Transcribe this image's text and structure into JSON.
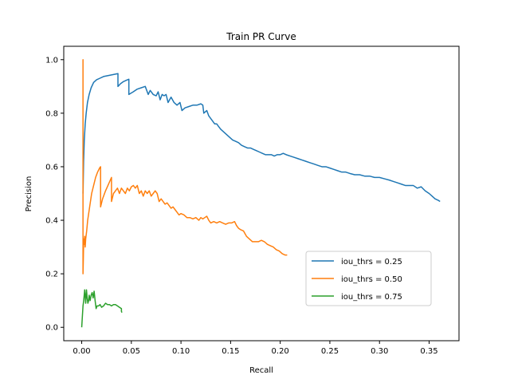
{
  "chart_data": {
    "type": "line",
    "title": "Train PR Curve",
    "xlabel": "Recall",
    "ylabel": "Precision",
    "xlim": [
      -0.0181,
      0.3801
    ],
    "ylim": [
      -0.05,
      1.05
    ],
    "xticks": [
      0.0,
      0.05,
      0.1,
      0.15,
      0.2,
      0.25,
      0.3,
      0.35
    ],
    "xtick_labels": [
      "0.00",
      "0.05",
      "0.10",
      "0.15",
      "0.20",
      "0.25",
      "0.30",
      "0.35"
    ],
    "yticks": [
      0.0,
      0.2,
      0.4,
      0.6,
      0.8,
      1.0
    ],
    "ytick_labels": [
      "0.0",
      "0.2",
      "0.4",
      "0.6",
      "0.8",
      "1.0"
    ],
    "grid": false,
    "legend_position": "lower-right",
    "series": [
      {
        "name": "iou_thrs = 0.25",
        "color": "#1f77b4",
        "x": [
          0.0013,
          0.0019,
          0.0026,
          0.0035,
          0.0045,
          0.0058,
          0.0075,
          0.0095,
          0.012,
          0.015,
          0.018,
          0.022,
          0.026,
          0.03,
          0.034,
          0.0365,
          0.0365,
          0.039,
          0.042,
          0.045,
          0.0475,
          0.0475,
          0.052,
          0.056,
          0.06,
          0.064,
          0.067,
          0.069,
          0.072,
          0.075,
          0.077,
          0.079,
          0.081,
          0.083,
          0.085,
          0.087,
          0.09,
          0.093,
          0.096,
          0.099,
          0.101,
          0.104,
          0.108,
          0.112,
          0.116,
          0.12,
          0.122,
          0.123,
          0.126,
          0.128,
          0.13,
          0.132,
          0.134,
          0.136,
          0.138,
          0.14,
          0.143,
          0.146,
          0.149,
          0.152,
          0.155,
          0.158,
          0.161,
          0.164,
          0.167,
          0.17,
          0.173,
          0.176,
          0.179,
          0.182,
          0.185,
          0.188,
          0.191,
          0.194,
          0.197,
          0.2,
          0.203,
          0.206,
          0.21,
          0.214,
          0.218,
          0.222,
          0.226,
          0.23,
          0.234,
          0.238,
          0.242,
          0.246,
          0.25,
          0.254,
          0.258,
          0.262,
          0.266,
          0.27,
          0.275,
          0.28,
          0.285,
          0.29,
          0.295,
          0.3,
          0.305,
          0.31,
          0.314,
          0.318,
          0.322,
          0.326,
          0.33,
          0.334,
          0.338,
          0.342,
          0.346,
          0.35,
          0.353,
          0.356,
          0.359,
          0.361
        ],
        "y": [
          0.5,
          0.62,
          0.7,
          0.76,
          0.8,
          0.84,
          0.87,
          0.895,
          0.915,
          0.925,
          0.93,
          0.937,
          0.94,
          0.943,
          0.946,
          0.948,
          0.9,
          0.91,
          0.918,
          0.923,
          0.927,
          0.87,
          0.88,
          0.89,
          0.895,
          0.9,
          0.87,
          0.885,
          0.87,
          0.865,
          0.88,
          0.85,
          0.87,
          0.865,
          0.87,
          0.84,
          0.86,
          0.84,
          0.83,
          0.84,
          0.81,
          0.82,
          0.825,
          0.83,
          0.83,
          0.835,
          0.83,
          0.8,
          0.81,
          0.79,
          0.78,
          0.77,
          0.76,
          0.76,
          0.75,
          0.74,
          0.73,
          0.72,
          0.71,
          0.7,
          0.695,
          0.69,
          0.68,
          0.675,
          0.67,
          0.67,
          0.665,
          0.66,
          0.655,
          0.65,
          0.645,
          0.645,
          0.645,
          0.64,
          0.645,
          0.645,
          0.65,
          0.645,
          0.64,
          0.635,
          0.63,
          0.625,
          0.62,
          0.615,
          0.61,
          0.605,
          0.6,
          0.6,
          0.595,
          0.59,
          0.585,
          0.58,
          0.58,
          0.575,
          0.57,
          0.57,
          0.565,
          0.565,
          0.56,
          0.56,
          0.555,
          0.55,
          0.545,
          0.54,
          0.535,
          0.53,
          0.53,
          0.53,
          0.52,
          0.525,
          0.51,
          0.5,
          0.49,
          0.48,
          0.475,
          0.47
        ]
      },
      {
        "name": "iou_thrs = 0.50",
        "color": "#ff7f0e",
        "x": [
          0.0013,
          0.0013,
          0.0013,
          0.0016,
          0.002,
          0.0025,
          0.003,
          0.0035,
          0.004,
          0.005,
          0.006,
          0.008,
          0.01,
          0.012,
          0.014,
          0.016,
          0.018,
          0.019,
          0.019,
          0.021,
          0.024,
          0.027,
          0.03,
          0.03,
          0.032,
          0.034,
          0.036,
          0.038,
          0.04,
          0.042,
          0.044,
          0.046,
          0.048,
          0.05,
          0.052,
          0.054,
          0.056,
          0.058,
          0.06,
          0.062,
          0.064,
          0.066,
          0.068,
          0.07,
          0.072,
          0.074,
          0.076,
          0.078,
          0.08,
          0.082,
          0.084,
          0.086,
          0.088,
          0.09,
          0.092,
          0.094,
          0.096,
          0.098,
          0.1,
          0.103,
          0.106,
          0.109,
          0.112,
          0.115,
          0.118,
          0.12,
          0.122,
          0.124,
          0.126,
          0.128,
          0.13,
          0.133,
          0.136,
          0.139,
          0.142,
          0.145,
          0.148,
          0.151,
          0.154,
          0.156,
          0.158,
          0.16,
          0.163,
          0.166,
          0.169,
          0.172,
          0.175,
          0.178,
          0.181,
          0.184,
          0.187,
          0.19,
          0.193,
          0.196,
          0.199,
          0.202,
          0.205,
          0.207
        ],
        "y": [
          0.5,
          1.0,
          0.2,
          0.25,
          0.33,
          0.31,
          0.34,
          0.3,
          0.33,
          0.36,
          0.4,
          0.45,
          0.5,
          0.53,
          0.56,
          0.58,
          0.595,
          0.6,
          0.45,
          0.48,
          0.51,
          0.535,
          0.56,
          0.47,
          0.5,
          0.51,
          0.52,
          0.5,
          0.52,
          0.51,
          0.5,
          0.52,
          0.51,
          0.525,
          0.53,
          0.52,
          0.53,
          0.5,
          0.51,
          0.49,
          0.51,
          0.5,
          0.51,
          0.49,
          0.5,
          0.51,
          0.5,
          0.47,
          0.48,
          0.47,
          0.46,
          0.465,
          0.455,
          0.445,
          0.45,
          0.44,
          0.43,
          0.42,
          0.425,
          0.42,
          0.41,
          0.41,
          0.405,
          0.41,
          0.4,
          0.41,
          0.405,
          0.41,
          0.415,
          0.4,
          0.39,
          0.395,
          0.39,
          0.395,
          0.39,
          0.385,
          0.39,
          0.39,
          0.395,
          0.38,
          0.37,
          0.365,
          0.36,
          0.34,
          0.33,
          0.32,
          0.32,
          0.32,
          0.325,
          0.32,
          0.31,
          0.305,
          0.3,
          0.29,
          0.285,
          0.275,
          0.27,
          0.27
        ]
      },
      {
        "name": "iou_thrs = 0.75",
        "color": "#2ca02c",
        "x": [
          0.0,
          0.0013,
          0.002,
          0.003,
          0.004,
          0.0048,
          0.0055,
          0.0062,
          0.007,
          0.0075,
          0.0085,
          0.0095,
          0.0105,
          0.0115,
          0.0125,
          0.0135,
          0.0145,
          0.0155,
          0.017,
          0.0185,
          0.02,
          0.022,
          0.024,
          0.026,
          0.028,
          0.03,
          0.032,
          0.034,
          0.036,
          0.038,
          0.04,
          0.04,
          0.0405
        ],
        "y": [
          0.0,
          0.08,
          0.1,
          0.14,
          0.09,
          0.14,
          0.11,
          0.09,
          0.1,
          0.12,
          0.1,
          0.12,
          0.13,
          0.11,
          0.135,
          0.1,
          0.07,
          0.08,
          0.08,
          0.085,
          0.075,
          0.08,
          0.09,
          0.085,
          0.085,
          0.08,
          0.085,
          0.085,
          0.08,
          0.075,
          0.07,
          0.06,
          0.055
        ]
      }
    ]
  }
}
